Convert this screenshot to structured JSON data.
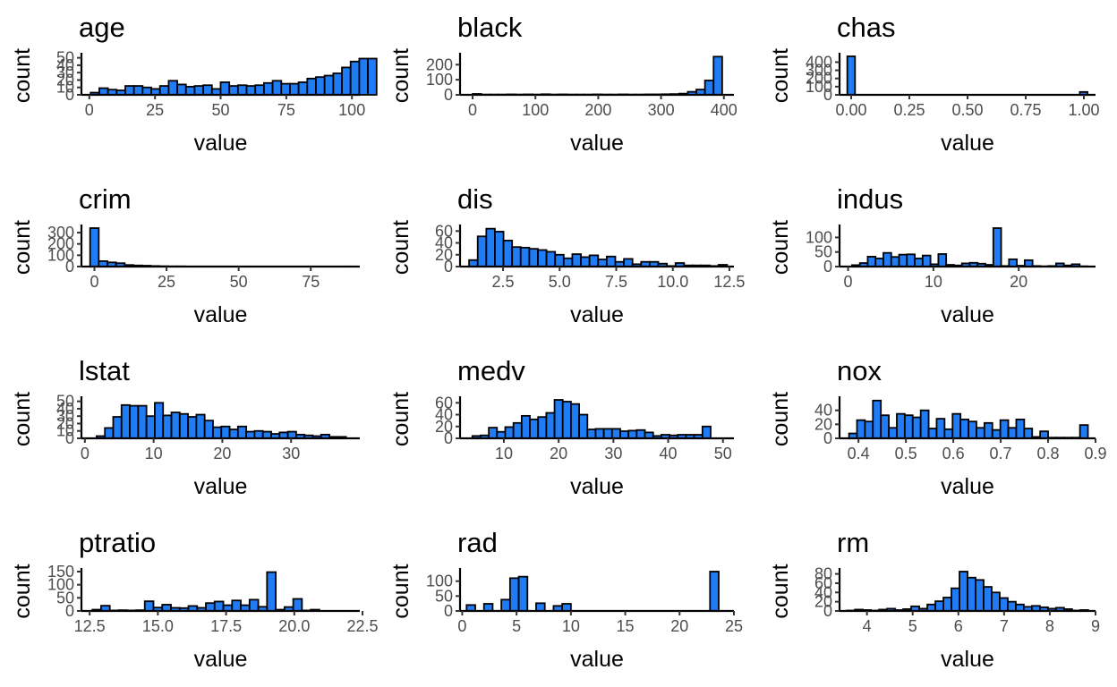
{
  "figure": {
    "background": "#ffffff",
    "bar_fill": "#1f7cf5",
    "bar_stroke": "#000000"
  },
  "chart_data": [
    {
      "type": "bar",
      "title": "age",
      "xlabel": "value",
      "ylabel": "count",
      "xlim": [
        -3,
        103
      ],
      "ylim": [
        0,
        52
      ],
      "xticks": [
        0,
        25,
        50,
        75,
        100
      ],
      "xtick_labels": [
        "0",
        "25",
        "50",
        "75",
        "100"
      ],
      "yticks": [
        0,
        10,
        20,
        30,
        40,
        50
      ],
      "ytick_labels": [
        "0",
        "10",
        "20",
        "30",
        "40",
        "50"
      ],
      "bin_start": 0.5,
      "bin_width": 3.3,
      "values": [
        3,
        9,
        7,
        6,
        12,
        12,
        10,
        8,
        12,
        19,
        14,
        11,
        12,
        13,
        8,
        17,
        12,
        13,
        12,
        13,
        16,
        19,
        15,
        15,
        17,
        22,
        24,
        26,
        29,
        37,
        45,
        49,
        49
      ]
    },
    {
      "type": "bar",
      "title": "black",
      "xlabel": "value",
      "ylabel": "count",
      "xlim": [
        -20,
        416
      ],
      "ylim": [
        0,
        255
      ],
      "xticks": [
        0,
        100,
        200,
        300,
        400
      ],
      "xtick_labels": [
        "0",
        "100",
        "200",
        "300",
        "400"
      ],
      "yticks": [
        0,
        100,
        200
      ],
      "ytick_labels": [
        "0",
        "100",
        "200"
      ],
      "bin_start": 0,
      "bin_width": 13.7,
      "values": [
        6,
        2,
        2,
        2,
        3,
        2,
        3,
        2,
        4,
        2,
        3,
        2,
        2,
        2,
        3,
        2,
        2,
        3,
        2,
        2,
        3,
        3,
        4,
        5,
        8,
        20,
        35,
        95,
        253
      ]
    },
    {
      "type": "bar",
      "title": "chas",
      "xlabel": "value",
      "ylabel": "count",
      "xlim": [
        -0.05,
        1.05
      ],
      "ylim": [
        0,
        471
      ],
      "xticks": [
        0,
        0.25,
        0.5,
        0.75,
        1
      ],
      "xtick_labels": [
        "0.00",
        "0.25",
        "0.50",
        "0.75",
        "1.00"
      ],
      "yticks": [
        0,
        100,
        200,
        300,
        400
      ],
      "ytick_labels": [
        "0",
        "100",
        "200",
        "300",
        "400"
      ],
      "bin_start": -0.0167,
      "bin_width": 0.0333,
      "values": [
        471,
        0,
        0,
        0,
        0,
        0,
        0,
        0,
        0,
        0,
        0,
        0,
        0,
        0,
        0,
        0,
        0,
        0,
        0,
        0,
        0,
        0,
        0,
        0,
        0,
        0,
        0,
        0,
        0,
        0,
        35
      ]
    },
    {
      "type": "bar",
      "title": "crim",
      "xlabel": "value",
      "ylabel": "count",
      "xlim": [
        -4.5,
        92
      ],
      "ylim": [
        0,
        340
      ],
      "xticks": [
        0,
        25,
        50,
        75
      ],
      "xtick_labels": [
        "0",
        "25",
        "50",
        "75"
      ],
      "yticks": [
        0,
        100,
        200,
        300
      ],
      "ytick_labels": [
        "0",
        "100",
        "200",
        "300"
      ],
      "bin_start": -1.5,
      "bin_width": 3.0,
      "values": [
        340,
        48,
        37,
        30,
        14,
        10,
        8,
        5,
        3,
        2,
        2,
        1,
        1,
        1,
        1,
        1,
        1,
        0,
        1,
        0,
        0,
        0,
        0,
        0,
        0,
        1,
        0,
        0,
        0,
        1
      ]
    },
    {
      "type": "bar",
      "title": "dis",
      "xlabel": "value",
      "ylabel": "count",
      "xlim": [
        0.6,
        12.7
      ],
      "ylim": [
        0,
        65
      ],
      "xticks": [
        2.5,
        5,
        7.5,
        10,
        12.5
      ],
      "xtick_labels": [
        "2.5",
        "5.0",
        "7.5",
        "10.0",
        "12.5"
      ],
      "yticks": [
        0,
        20,
        40,
        60
      ],
      "ytick_labels": [
        "0",
        "20",
        "40",
        "60"
      ],
      "bin_start": 1.0,
      "bin_width": 0.38,
      "values": [
        11,
        51,
        64,
        59,
        44,
        33,
        32,
        30,
        28,
        25,
        20,
        14,
        21,
        16,
        19,
        12,
        17,
        8,
        13,
        4,
        8,
        8,
        5,
        1,
        6,
        2,
        2,
        2,
        1,
        3
      ]
    },
    {
      "type": "bar",
      "title": "indus",
      "xlabel": "value",
      "ylabel": "count",
      "xlim": [
        -1,
        29
      ],
      "ylim": [
        0,
        132
      ],
      "xticks": [
        0,
        10,
        20
      ],
      "xtick_labels": [
        "0",
        "10",
        "20"
      ],
      "yticks": [
        0,
        50,
        100
      ],
      "ytick_labels": [
        "0",
        "50",
        "100"
      ],
      "bin_start": 0.46,
      "bin_width": 0.92,
      "values": [
        5,
        12,
        34,
        28,
        47,
        33,
        41,
        42,
        28,
        38,
        8,
        43,
        6,
        4,
        11,
        13,
        10,
        6,
        132,
        2,
        25,
        3,
        22,
        2,
        1,
        2,
        11,
        4,
        8,
        1
      ]
    },
    {
      "type": "bar",
      "title": "lstat",
      "xlabel": "value",
      "ylabel": "count",
      "xlim": [
        -0.5,
        40
      ],
      "ylim": [
        0,
        52
      ],
      "xticks": [
        0,
        10,
        20,
        30
      ],
      "xtick_labels": [
        "0",
        "10",
        "20",
        "30"
      ],
      "yticks": [
        0,
        10,
        20,
        30,
        40,
        50
      ],
      "ytick_labels": [
        "0",
        "10",
        "20",
        "30",
        "40",
        "50"
      ],
      "bin_start": 1.7,
      "bin_width": 1.21,
      "values": [
        3,
        14,
        29,
        45,
        44,
        44,
        30,
        48,
        31,
        35,
        33,
        29,
        32,
        24,
        15,
        16,
        12,
        16,
        9,
        10,
        9,
        6,
        8,
        9,
        5,
        4,
        3,
        5,
        2,
        2
      ]
    },
    {
      "type": "bar",
      "title": "medv",
      "xlabel": "value",
      "ylabel": "count",
      "xlim": [
        2,
        52
      ],
      "ylim": [
        0,
        65
      ],
      "xticks": [
        10,
        20,
        30,
        40,
        50
      ],
      "xtick_labels": [
        "10",
        "20",
        "30",
        "40",
        "50"
      ],
      "yticks": [
        0,
        20,
        40,
        60
      ],
      "ytick_labels": [
        "0",
        "20",
        "40",
        "60"
      ],
      "bin_start": 4.25,
      "bin_width": 1.5,
      "values": [
        4,
        5,
        18,
        11,
        19,
        26,
        38,
        32,
        36,
        43,
        65,
        62,
        58,
        40,
        15,
        16,
        16,
        16,
        12,
        13,
        14,
        10,
        4,
        6,
        5,
        6,
        6,
        6,
        20
      ]
    },
    {
      "type": "bar",
      "title": "nox",
      "xlabel": "value",
      "ylabel": "count",
      "xlim": [
        0.36,
        0.9
      ],
      "ylim": [
        0,
        55
      ],
      "xticks": [
        0.4,
        0.5,
        0.6,
        0.7,
        0.8,
        0.9
      ],
      "xtick_labels": [
        "0.4",
        "0.5",
        "0.6",
        "0.7",
        "0.8",
        "0.9"
      ],
      "yticks": [
        0,
        20,
        40
      ],
      "ytick_labels": [
        "0",
        "20",
        "40"
      ],
      "bin_start": 0.38,
      "bin_width": 0.0168,
      "values": [
        7,
        26,
        24,
        54,
        33,
        15,
        35,
        33,
        30,
        40,
        14,
        28,
        13,
        35,
        27,
        24,
        15,
        22,
        12,
        26,
        15,
        27,
        14,
        2,
        10,
        1,
        1,
        1,
        1,
        19
      ]
    },
    {
      "type": "bar",
      "title": "ptratio",
      "xlabel": "value",
      "ylabel": "count",
      "xlim": [
        12.2,
        22.4
      ],
      "ylim": [
        0,
        150
      ],
      "xticks": [
        12.5,
        15,
        17.5,
        20,
        22.5
      ],
      "xtick_labels": [
        "12.5",
        "15.0",
        "17.5",
        "20.0",
        "22.5"
      ],
      "yticks": [
        0,
        50,
        100,
        150
      ],
      "ytick_labels": [
        "0",
        "50",
        "100",
        "150"
      ],
      "bin_start": 12.6,
      "bin_width": 0.32,
      "values": [
        5,
        20,
        2,
        3,
        2,
        3,
        37,
        13,
        24,
        12,
        11,
        19,
        12,
        30,
        36,
        22,
        40,
        22,
        43,
        16,
        148,
        5,
        15,
        46,
        2,
        5
      ]
    },
    {
      "type": "bar",
      "title": "rad",
      "xlabel": "value",
      "ylabel": "count",
      "xlim": [
        -0.2,
        25
      ],
      "ylim": [
        0,
        132
      ],
      "xticks": [
        0,
        5,
        10,
        15,
        20,
        25
      ],
      "xtick_labels": [
        "0",
        "5",
        "10",
        "15",
        "20",
        "25"
      ],
      "yticks": [
        0,
        50,
        100
      ],
      "ytick_labels": [
        "0",
        "50",
        "100"
      ],
      "bin_start": 0.4,
      "bin_width": 0.8,
      "values": [
        20,
        0,
        24,
        0,
        38,
        110,
        115,
        0,
        26,
        0,
        17,
        24,
        0,
        0,
        0,
        0,
        0,
        0,
        0,
        0,
        0,
        0,
        0,
        0,
        0,
        0,
        0,
        0,
        132
      ]
    },
    {
      "type": "bar",
      "title": "rm",
      "xlabel": "value",
      "ylabel": "count",
      "xlim": [
        3.4,
        9.0
      ],
      "ylim": [
        0,
        85
      ],
      "xticks": [
        4,
        5,
        6,
        7,
        8,
        9
      ],
      "xtick_labels": [
        "4",
        "5",
        "6",
        "7",
        "8",
        "9"
      ],
      "yticks": [
        0,
        20,
        40,
        60,
        80
      ],
      "ytick_labels": [
        "0",
        "20",
        "40",
        "60",
        "80"
      ],
      "bin_start": 3.56,
      "bin_width": 0.176,
      "values": [
        1,
        3,
        2,
        1,
        3,
        5,
        2,
        4,
        10,
        5,
        14,
        21,
        29,
        49,
        85,
        72,
        67,
        52,
        40,
        28,
        20,
        14,
        9,
        11,
        8,
        5,
        7,
        4,
        1,
        2
      ]
    }
  ]
}
